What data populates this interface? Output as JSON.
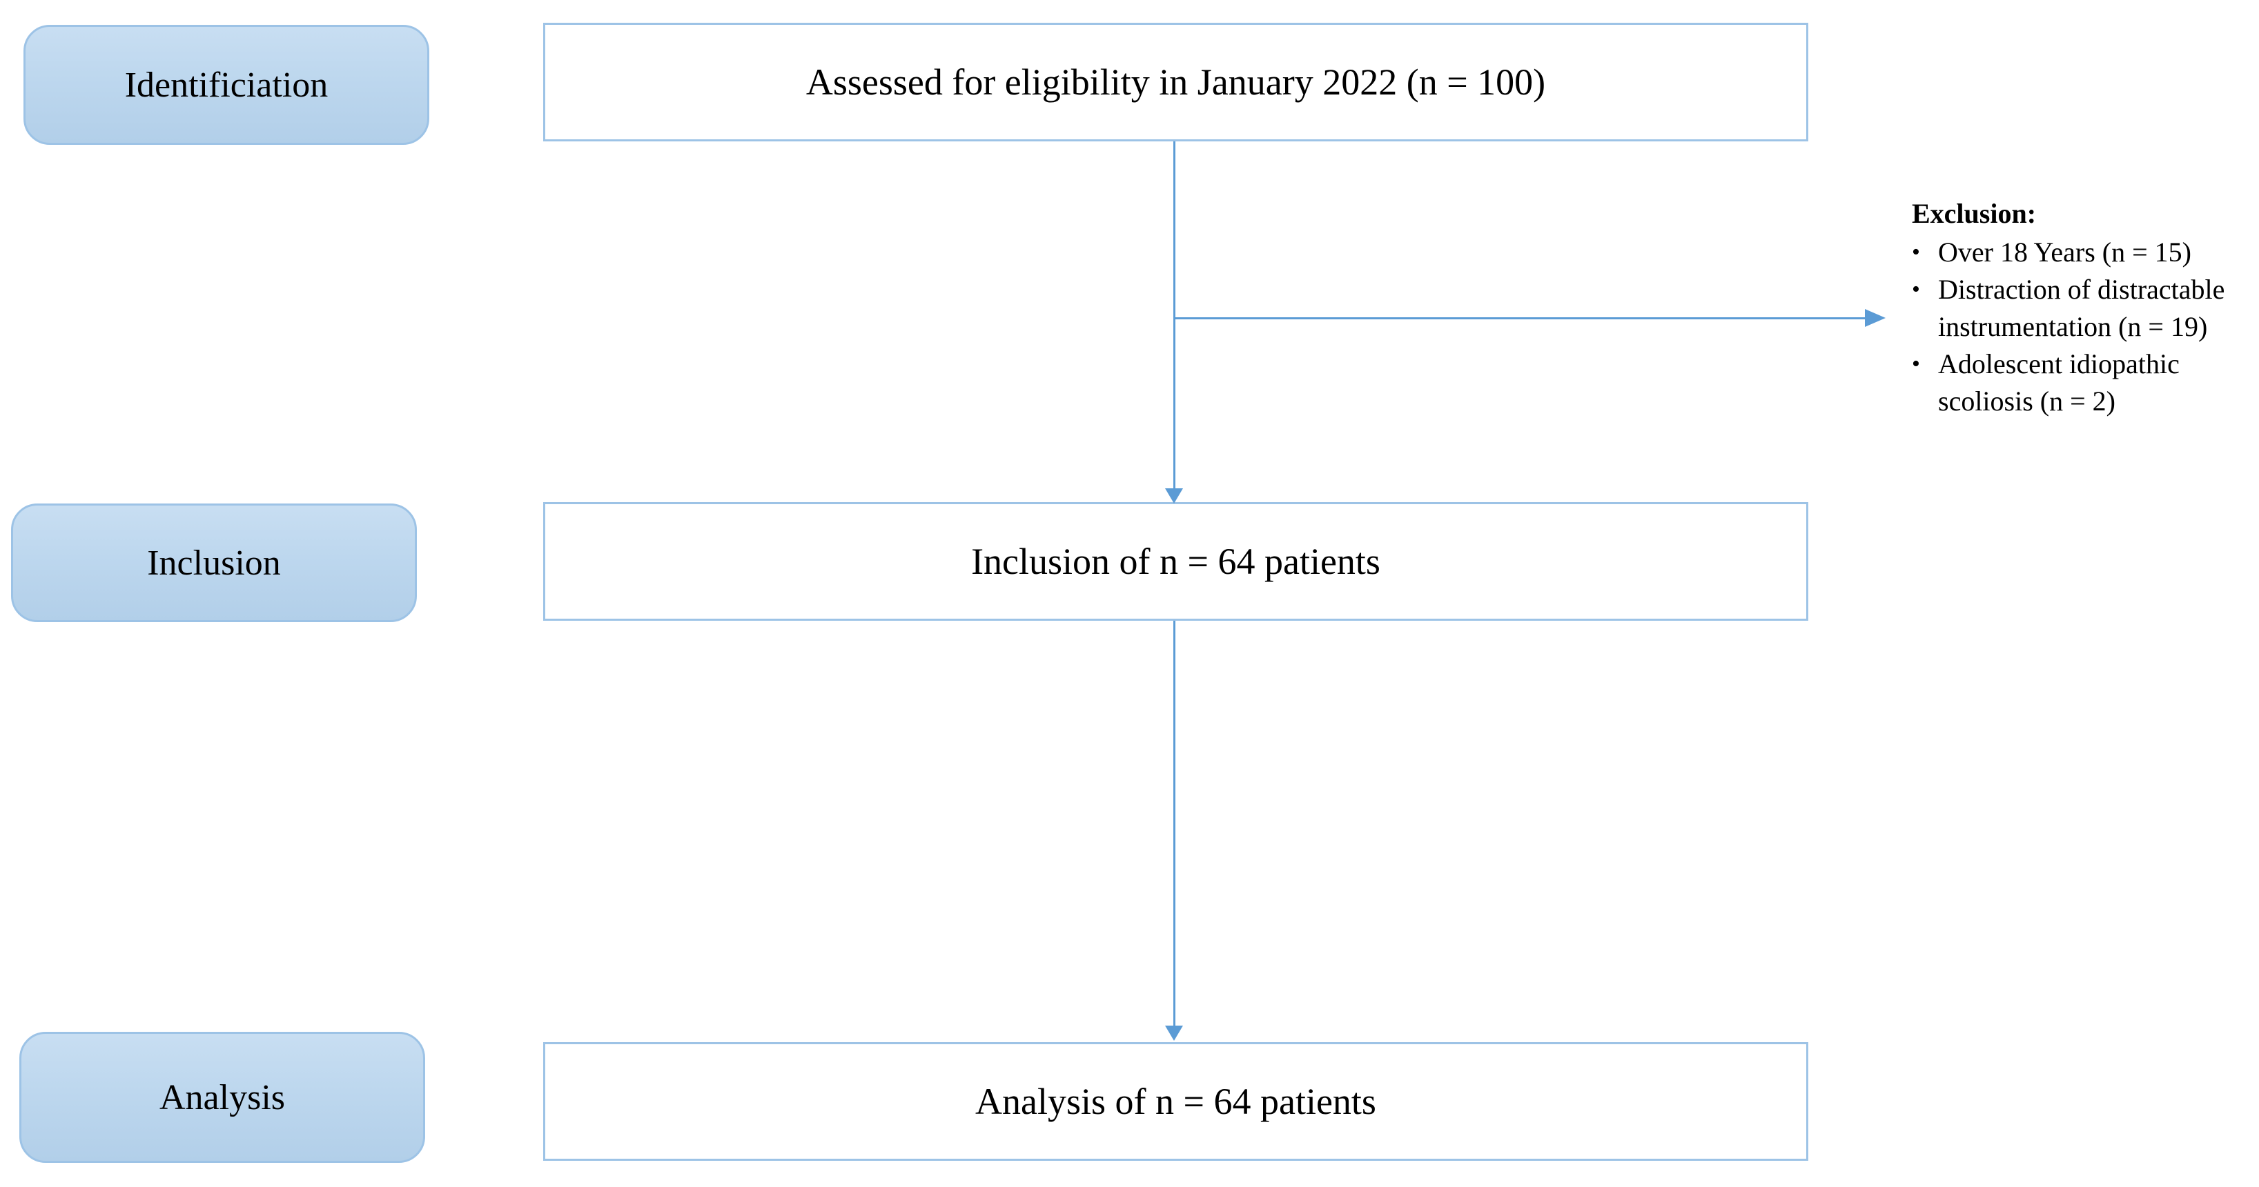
{
  "diagram": {
    "stages": [
      {
        "label": "Identificiation"
      },
      {
        "label": "Inclusion"
      },
      {
        "label": "Analysis"
      }
    ],
    "boxes": [
      {
        "text": "Assessed for eligibility in January 2022 (n = 100)"
      },
      {
        "text": "Inclusion of n = 64 patients"
      },
      {
        "text": "Analysis of n = 64 patients"
      }
    ],
    "exclusion": {
      "title": "Exclusion:",
      "bullet": "•",
      "items": [
        "Over 18 Years (n = 15)",
        "Distraction of distractable instrumentation (n = 19)",
        "Adolescent idiopathic scoliosis (n = 2)"
      ]
    },
    "colors": {
      "stage_fill": "#BDD7EE",
      "stage_border": "#9DC3E6",
      "box_border": "#9DC3E6",
      "connector": "#5B9BD5",
      "text": "#000000"
    }
  }
}
